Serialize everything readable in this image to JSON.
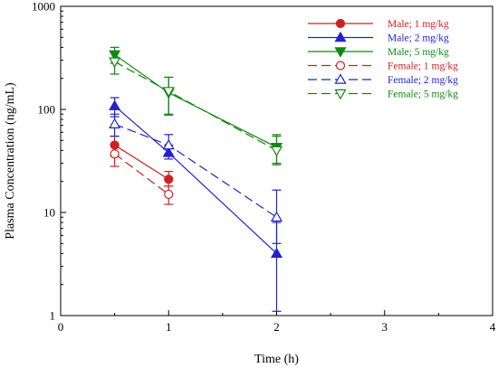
{
  "chart_data": {
    "type": "line",
    "xlabel": "Time (h)",
    "ylabel": "Plasma Concentration (ng/mL)",
    "xlim": [
      0,
      4
    ],
    "ylim": [
      1,
      1000
    ],
    "yscale": "log",
    "xticks": [
      "0",
      "1",
      "2",
      "3",
      "4"
    ],
    "yticks": [
      "1",
      "10",
      "100",
      "1000"
    ],
    "grid": false,
    "legend_position": "top-right",
    "series": [
      {
        "name": "Male; 1 mg/kg",
        "color": "#cc2222",
        "dash": "solid",
        "marker": "circle-filled",
        "x": [
          0.5,
          1
        ],
        "y": [
          45,
          21
        ],
        "err_low": [
          35,
          18
        ],
        "err_high": [
          55,
          25
        ]
      },
      {
        "name": "Male; 2 mg/kg",
        "color": "#2222cc",
        "dash": "solid",
        "marker": "triangle-up-filled",
        "x": [
          0.5,
          1,
          2
        ],
        "y": [
          108,
          38,
          4
        ],
        "err_low": [
          85,
          33,
          1.1
        ],
        "err_high": [
          130,
          45,
          8
        ]
      },
      {
        "name": "Male; 5 mg/kg",
        "color": "#118811",
        "dash": "solid",
        "marker": "triangle-down-filled",
        "x": [
          0.5,
          1,
          2
        ],
        "y": [
          340,
          145,
          43
        ],
        "err_low": [
          280,
          90,
          30
        ],
        "err_high": [
          400,
          205,
          55
        ]
      },
      {
        "name": "Female; 1 mg/kg",
        "color": "#cc2222",
        "dash": "dashed",
        "marker": "circle-open",
        "x": [
          0.5,
          1
        ],
        "y": [
          37,
          15
        ],
        "err_low": [
          28,
          12
        ],
        "err_high": [
          46,
          18
        ]
      },
      {
        "name": "Female; 2 mg/kg",
        "color": "#2222cc",
        "dash": "dashed",
        "marker": "triangle-up-open",
        "x": [
          0.5,
          1,
          2
        ],
        "y": [
          72,
          45,
          9
        ],
        "err_low": [
          55,
          37,
          5
        ],
        "err_high": [
          90,
          57,
          16.5
        ]
      },
      {
        "name": "Female; 5 mg/kg",
        "color": "#118811",
        "dash": "dashed",
        "marker": "triangle-down-open",
        "x": [
          0.5,
          1,
          2
        ],
        "y": [
          290,
          150,
          40
        ],
        "err_low": [
          220,
          88,
          29
        ],
        "err_high": [
          360,
          205,
          57
        ]
      }
    ]
  }
}
